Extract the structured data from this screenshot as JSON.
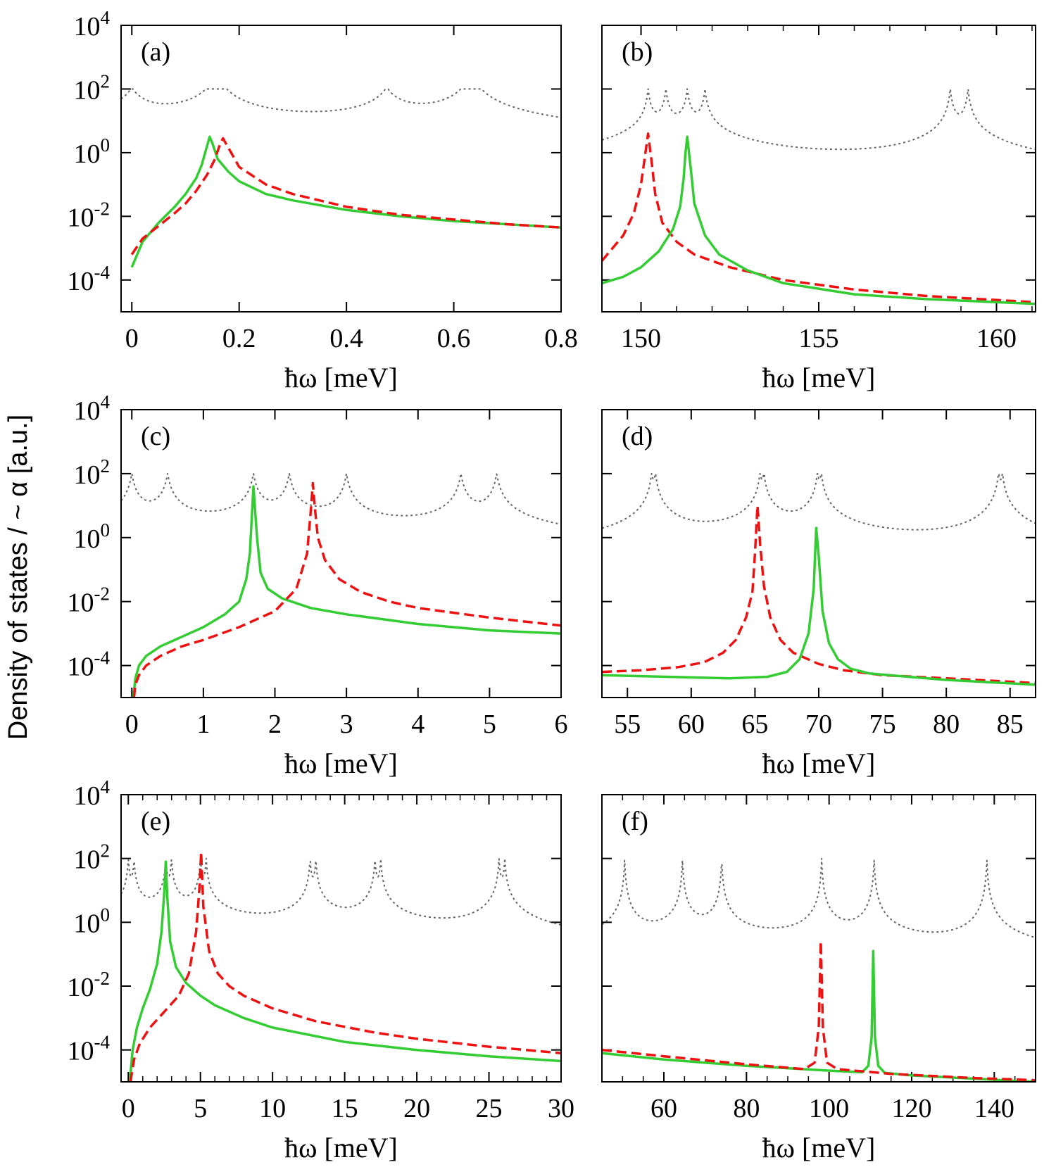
{
  "figure": {
    "ylabel": "Density of states / ~ α [a.u.]",
    "y_ticks": [
      {
        "base": "10",
        "exp": "4"
      },
      {
        "base": "10",
        "exp": "2"
      },
      {
        "base": "10",
        "exp": "0"
      },
      {
        "base": "10",
        "exp": "-2"
      },
      {
        "base": "10",
        "exp": "-4"
      }
    ],
    "colors": {
      "green_series": "#33cc33",
      "red_series": "#ee1111",
      "dotted_series": "#666666",
      "axes": "#000000"
    }
  },
  "chart_data": [
    {
      "type": "line",
      "panel_label": "(a)",
      "xlabel": "ħω [meV]",
      "yscale": "log",
      "xlim": [
        -0.02,
        0.8
      ],
      "ylim": [
        -5,
        4
      ],
      "xticks": [
        0,
        0.2,
        0.4,
        0.6,
        0.8
      ],
      "xtick_labels": [
        "0",
        "0.2",
        "0.4",
        "0.6",
        "0.8"
      ],
      "minor_xticks": [],
      "series": [
        {
          "style": "dotted",
          "color": "#666666",
          "baseline": 0.5,
          "peaks": [
            [
              0,
              2
            ],
            [
              0.145,
              2
            ],
            [
              0.17,
              2
            ],
            [
              0.475,
              2
            ],
            [
              0.62,
              2
            ],
            [
              0.645,
              2
            ]
          ],
          "width": 0.02
        },
        {
          "style": "solid",
          "color": "#33cc33",
          "x": [
            0.0,
            0.02,
            0.05,
            0.08,
            0.1,
            0.12,
            0.13,
            0.14,
            0.145,
            0.15,
            0.16,
            0.18,
            0.2,
            0.25,
            0.3,
            0.4,
            0.5,
            0.6,
            0.7,
            0.8
          ],
          "log_y": [
            -3.6,
            -2.8,
            -2.2,
            -1.7,
            -1.3,
            -0.8,
            -0.4,
            0.2,
            0.5,
            0.3,
            -0.2,
            -0.6,
            -0.9,
            -1.3,
            -1.5,
            -1.8,
            -2.0,
            -2.15,
            -2.25,
            -2.35
          ]
        },
        {
          "style": "dashed",
          "color": "#ee1111",
          "x": [
            0.0,
            0.02,
            0.05,
            0.08,
            0.1,
            0.12,
            0.14,
            0.155,
            0.165,
            0.17,
            0.175,
            0.185,
            0.2,
            0.25,
            0.3,
            0.4,
            0.5,
            0.6,
            0.7,
            0.8
          ],
          "log_y": [
            -3.2,
            -2.7,
            -2.3,
            -1.9,
            -1.6,
            -1.2,
            -0.7,
            -0.2,
            0.3,
            0.45,
            0.3,
            0.0,
            -0.45,
            -1.0,
            -1.3,
            -1.7,
            -1.95,
            -2.1,
            -2.25,
            -2.35
          ]
        }
      ]
    },
    {
      "type": "line",
      "panel_label": "(b)",
      "xlabel": "ħω [meV]",
      "yscale": "log",
      "xlim": [
        148.9,
        161.1
      ],
      "ylim": [
        -5,
        4
      ],
      "xticks": [
        150,
        155,
        160
      ],
      "xtick_labels": [
        "150",
        "155",
        "160"
      ],
      "minor_xticks": [
        151,
        152,
        153,
        154,
        156,
        157,
        158,
        159,
        161
      ],
      "series": [
        {
          "style": "dotted",
          "color": "#666666",
          "baseline": 0.12,
          "peaks": [
            [
              150.2,
              2
            ],
            [
              150.7,
              2
            ],
            [
              151.3,
              2
            ],
            [
              151.8,
              2
            ],
            [
              158.7,
              2
            ],
            [
              159.2,
              2
            ]
          ],
          "width": 0.05
        },
        {
          "style": "dashed",
          "color": "#ee1111",
          "x": [
            148.9,
            149.5,
            149.8,
            150.0,
            150.1,
            150.2,
            150.3,
            150.4,
            150.6,
            151.0,
            151.5,
            152.5,
            154.0,
            156.0,
            158.0,
            161.1
          ],
          "log_y": [
            -3.4,
            -2.6,
            -1.9,
            -1.0,
            -0.2,
            0.6,
            -0.3,
            -1.3,
            -2.2,
            -2.8,
            -3.2,
            -3.6,
            -4.0,
            -4.3,
            -4.5,
            -4.7
          ]
        },
        {
          "style": "solid",
          "color": "#33cc33",
          "x": [
            148.9,
            149.5,
            150.0,
            150.5,
            150.9,
            151.1,
            151.2,
            151.25,
            151.3,
            151.4,
            151.5,
            151.8,
            152.2,
            153.0,
            154.0,
            156.0,
            158.0,
            161.1
          ],
          "log_y": [
            -4.1,
            -3.9,
            -3.6,
            -3.1,
            -2.4,
            -1.7,
            -0.8,
            0.0,
            0.5,
            -0.5,
            -1.6,
            -2.6,
            -3.2,
            -3.7,
            -4.1,
            -4.45,
            -4.6,
            -4.75
          ]
        }
      ]
    },
    {
      "type": "line",
      "panel_label": "(c)",
      "xlabel": "ħω [meV]",
      "yscale": "log",
      "xlim": [
        -0.15,
        6
      ],
      "ylim": [
        -5,
        4
      ],
      "xticks": [
        0,
        1,
        2,
        3,
        4,
        5,
        6
      ],
      "xtick_labels": [
        "0",
        "1",
        "2",
        "3",
        "4",
        "5",
        "6"
      ],
      "minor_xticks": [],
      "series": [
        {
          "style": "dotted",
          "color": "#666666",
          "baseline": 0.05,
          "peaks": [
            [
              0.0,
              2
            ],
            [
              0.5,
              2
            ],
            [
              1.7,
              2
            ],
            [
              2.2,
              2
            ],
            [
              3.0,
              2
            ],
            [
              4.6,
              2
            ],
            [
              5.1,
              2
            ]
          ],
          "width": 0.04
        },
        {
          "style": "solid",
          "color": "#33cc33",
          "x": [
            0.02,
            0.05,
            0.1,
            0.2,
            0.4,
            0.7,
            1.0,
            1.3,
            1.5,
            1.6,
            1.65,
            1.7,
            1.75,
            1.8,
            1.9,
            2.1,
            2.5,
            3.0,
            4.0,
            5.0,
            6.0
          ],
          "log_y": [
            -5.0,
            -4.4,
            -4.0,
            -3.7,
            -3.4,
            -3.1,
            -2.8,
            -2.4,
            -2.0,
            -1.3,
            -0.5,
            1.6,
            0.0,
            -1.1,
            -1.6,
            -1.9,
            -2.2,
            -2.4,
            -2.7,
            -2.9,
            -3.0
          ]
        },
        {
          "style": "dashed",
          "color": "#ee1111",
          "x": [
            0.03,
            0.05,
            0.1,
            0.2,
            0.4,
            0.7,
            1.0,
            1.5,
            2.0,
            2.3,
            2.45,
            2.5,
            2.53,
            2.56,
            2.6,
            2.7,
            2.9,
            3.2,
            3.6,
            4.0,
            5.0,
            6.0
          ],
          "log_y": [
            -5.0,
            -4.6,
            -4.3,
            -4.0,
            -3.7,
            -3.4,
            -3.2,
            -2.8,
            -2.3,
            -1.6,
            -0.5,
            0.8,
            1.7,
            0.9,
            0.0,
            -0.7,
            -1.3,
            -1.7,
            -2.0,
            -2.2,
            -2.5,
            -2.75
          ]
        }
      ]
    },
    {
      "type": "line",
      "panel_label": "(d)",
      "xlabel": "ħω [meV]",
      "yscale": "log",
      "xlim": [
        53,
        87
      ],
      "ylim": [
        -5,
        4
      ],
      "xticks": [
        55,
        60,
        65,
        70,
        75,
        80,
        85
      ],
      "xtick_labels": [
        "55",
        "60",
        "65",
        "70",
        "75",
        "80",
        "85"
      ],
      "minor_xticks": [],
      "series": [
        {
          "style": "dotted",
          "color": "#666666",
          "baseline": 0.07,
          "peaks": [
            [
              56.9,
              2
            ],
            [
              57.2,
              2
            ],
            [
              65.4,
              2
            ],
            [
              65.7,
              2
            ],
            [
              69.9,
              2
            ],
            [
              70.2,
              2
            ],
            [
              84.1,
              2
            ],
            [
              84.4,
              2
            ]
          ],
          "width": 0.12
        },
        {
          "style": "dashed",
          "color": "#ee1111",
          "x": [
            53,
            56,
            59,
            61,
            62.5,
            63.5,
            64.3,
            64.8,
            65.0,
            65.2,
            65.4,
            65.7,
            66.2,
            67,
            68,
            70,
            72,
            75,
            80,
            87
          ],
          "log_y": [
            -4.2,
            -4.15,
            -4.05,
            -3.9,
            -3.6,
            -3.2,
            -2.5,
            -1.7,
            -0.5,
            1.0,
            -0.2,
            -1.5,
            -2.5,
            -3.2,
            -3.6,
            -3.95,
            -4.15,
            -4.3,
            -4.4,
            -4.55
          ]
        },
        {
          "style": "solid",
          "color": "#33cc33",
          "x": [
            53,
            58,
            63,
            66,
            67.5,
            68.5,
            69.2,
            69.6,
            69.8,
            70.0,
            70.3,
            70.8,
            71.5,
            72.5,
            74,
            77,
            80,
            87
          ],
          "log_y": [
            -4.3,
            -4.35,
            -4.4,
            -4.35,
            -4.2,
            -3.8,
            -3.0,
            -1.6,
            0.3,
            -0.6,
            -2.3,
            -3.3,
            -3.8,
            -4.1,
            -4.25,
            -4.35,
            -4.45,
            -4.6
          ]
        }
      ]
    },
    {
      "type": "line",
      "panel_label": "(e)",
      "xlabel": "ħω [meV]",
      "yscale": "log",
      "xlim": [
        -0.5,
        30
      ],
      "ylim": [
        -5,
        4
      ],
      "xticks": [
        0,
        5,
        10,
        15,
        20,
        25,
        30
      ],
      "xtick_labels": [
        "0",
        "5",
        "10",
        "15",
        "20",
        "25",
        "30"
      ],
      "minor_xticks": [
        1,
        2,
        3,
        4,
        6,
        7,
        8,
        9,
        11,
        12,
        13,
        14,
        16,
        17,
        18,
        19,
        21,
        22,
        23,
        24,
        26,
        27,
        28,
        29
      ],
      "series": [
        {
          "style": "dotted",
          "color": "#666666",
          "baseline": 0.05,
          "peaks": [
            [
              0.0,
              2
            ],
            [
              0.4,
              2
            ],
            [
              2.6,
              2
            ],
            [
              3.0,
              2
            ],
            [
              5.0,
              2
            ],
            [
              5.4,
              2
            ],
            [
              12.6,
              2
            ],
            [
              13.0,
              2
            ],
            [
              17.1,
              2
            ],
            [
              17.5,
              2
            ],
            [
              25.7,
              2
            ],
            [
              26.1,
              2
            ]
          ],
          "width": 0.06
        },
        {
          "style": "solid",
          "color": "#33cc33",
          "x": [
            0.1,
            0.3,
            0.6,
            1.0,
            1.5,
            2.0,
            2.3,
            2.5,
            2.6,
            2.7,
            2.9,
            3.3,
            4.0,
            5.0,
            6.0,
            8.0,
            10.0,
            15.0,
            20.0,
            25.0,
            30.0
          ],
          "log_y": [
            -5.0,
            -4.0,
            -3.3,
            -2.7,
            -2.1,
            -1.3,
            -0.3,
            1.0,
            1.9,
            0.8,
            -0.6,
            -1.4,
            -1.9,
            -2.3,
            -2.6,
            -3.0,
            -3.3,
            -3.75,
            -4.0,
            -4.2,
            -4.35
          ]
        },
        {
          "style": "dashed",
          "color": "#ee1111",
          "x": [
            0.15,
            0.4,
            0.8,
            1.5,
            2.5,
            3.5,
            4.2,
            4.7,
            4.95,
            5.05,
            5.2,
            5.6,
            6.2,
            7.0,
            8.0,
            10.0,
            13.0,
            17.0,
            20.0,
            25.0,
            30.0
          ],
          "log_y": [
            -5.0,
            -4.3,
            -3.8,
            -3.3,
            -2.8,
            -2.3,
            -1.6,
            -0.3,
            1.2,
            2.2,
            0.5,
            -0.9,
            -1.6,
            -2.0,
            -2.3,
            -2.7,
            -3.1,
            -3.45,
            -3.65,
            -3.9,
            -4.1
          ]
        }
      ]
    },
    {
      "type": "line",
      "panel_label": "(f)",
      "xlabel": "ħω [meV]",
      "yscale": "log",
      "xlim": [
        45,
        150
      ],
      "ylim": [
        -5,
        4
      ],
      "xticks": [
        60,
        80,
        100,
        120,
        140
      ],
      "xtick_labels": [
        "60",
        "80",
        "100",
        "120",
        "140"
      ],
      "minor_xticks": [
        50,
        55,
        65,
        70,
        75,
        85,
        90,
        95,
        105,
        110,
        115,
        125,
        130,
        135,
        145
      ],
      "series": [
        {
          "style": "dotted",
          "color": "#666666",
          "baseline": 0.06,
          "peaks": [
            [
              50.5,
              2
            ],
            [
              64.5,
              2
            ],
            [
              74.0,
              2
            ],
            [
              98.2,
              2
            ],
            [
              110.9,
              2
            ],
            [
              138.2,
              2
            ]
          ],
          "width": 0.15
        },
        {
          "style": "solid",
          "color": "#33cc33",
          "x": [
            45,
            60,
            80,
            100,
            108,
            109.5,
            110.3,
            110.7,
            111.1,
            111.9,
            113.5,
            120,
            135,
            150
          ],
          "log_y": [
            -4.1,
            -4.3,
            -4.5,
            -4.65,
            -4.7,
            -4.5,
            -3.6,
            -0.9,
            -3.6,
            -4.5,
            -4.72,
            -4.8,
            -4.9,
            -5.0
          ]
        },
        {
          "style": "dashed",
          "color": "#ee1111",
          "x": [
            45,
            60,
            80,
            94,
            96.5,
            97.5,
            98.0,
            98.5,
            99.5,
            102,
            115,
            135,
            150
          ],
          "log_y": [
            -4.0,
            -4.2,
            -4.45,
            -4.6,
            -4.4,
            -3.3,
            -0.6,
            -3.3,
            -4.4,
            -4.6,
            -4.75,
            -4.88,
            -4.95
          ]
        }
      ]
    }
  ]
}
